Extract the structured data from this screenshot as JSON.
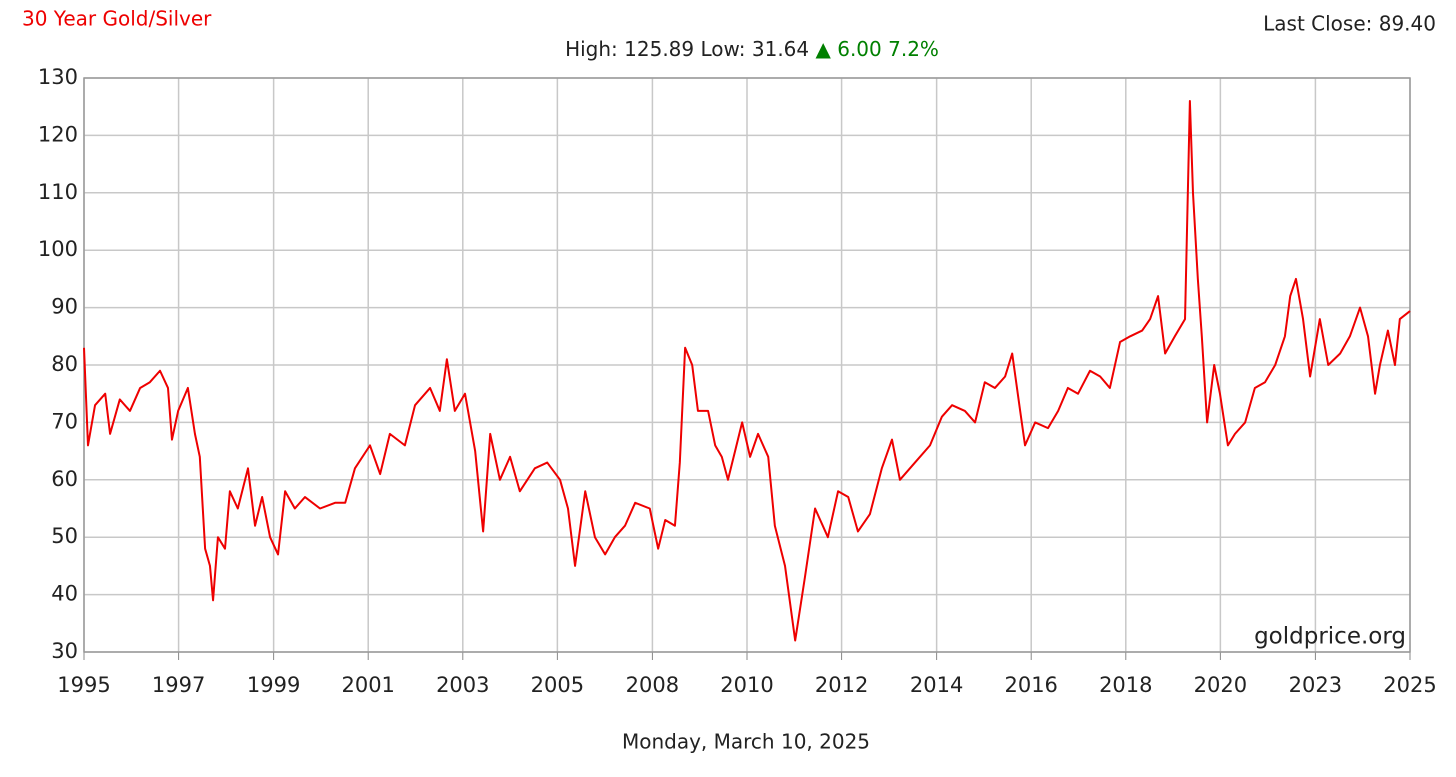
{
  "chart_data": {
    "type": "line",
    "title": "30 Year Gold/Silver",
    "last_close": "Last Close: 89.40",
    "high_low": "High: 125.89 Low: 31.64",
    "change": "▲ 6.00 7.2%",
    "change_color": "#008000",
    "watermark": "goldprice.org",
    "x_label": "Monday, March 10, 2025",
    "color": "#ee0000",
    "grid": true,
    "x": [
      1995.19,
      1995.28,
      1995.44,
      1995.67,
      1995.78,
      1996.0,
      1996.23,
      1996.46,
      1996.68,
      1996.91,
      1997.09,
      1997.18,
      1997.32,
      1997.54,
      1997.7,
      1997.81,
      1997.93,
      1998.04,
      1998.11,
      1998.22,
      1998.38,
      1998.49,
      1998.67,
      1998.9,
      1999.06,
      1999.22,
      1999.4,
      1999.58,
      1999.74,
      1999.96,
      2000.19,
      2000.53,
      2000.87,
      2001.1,
      2001.32,
      2001.66,
      2001.89,
      2002.11,
      2002.45,
      2002.68,
      2003.02,
      2003.24,
      2003.4,
      2003.58,
      2003.81,
      2004.04,
      2004.22,
      2004.38,
      2004.6,
      2004.83,
      2005.05,
      2005.39,
      2005.67,
      2005.96,
      2006.14,
      2006.3,
      2006.53,
      2006.75,
      2006.98,
      2007.2,
      2007.43,
      2007.66,
      2007.99,
      2008.18,
      2008.34,
      2008.56,
      2008.67,
      2008.79,
      2008.95,
      2009.08,
      2009.31,
      2009.47,
      2009.62,
      2009.76,
      2009.92,
      2010.08,
      2010.26,
      2010.44,
      2010.67,
      2010.82,
      2011.05,
      2011.28,
      2011.5,
      2011.73,
      2012.02,
      2012.25,
      2012.48,
      2012.7,
      2012.97,
      2013.24,
      2013.47,
      2013.65,
      2013.99,
      2014.33,
      2014.6,
      2014.83,
      2015.12,
      2015.35,
      2015.57,
      2015.8,
      2016.03,
      2016.19,
      2016.37,
      2016.48,
      2016.71,
      2017.0,
      2017.23,
      2017.45,
      2017.68,
      2017.95,
      2018.18,
      2018.4,
      2018.63,
      2018.86,
      2019.13,
      2019.31,
      2019.49,
      2019.65,
      2019.87,
      2020.1,
      2020.21,
      2020.28,
      2020.39,
      2020.48,
      2020.6,
      2020.76,
      2020.89,
      2021.07,
      2021.23,
      2021.46,
      2021.68,
      2021.91,
      2022.14,
      2022.36,
      2022.48,
      2022.61,
      2022.77,
      2022.93,
      2023.15,
      2023.34,
      2023.61,
      2023.83,
      2024.06,
      2024.24,
      2024.4,
      2024.51,
      2024.69,
      2024.85,
      2024.96,
      2025.19
    ],
    "values": [
      83,
      66,
      73,
      75,
      68,
      74,
      72,
      76,
      77,
      79,
      76,
      67,
      72,
      76,
      68,
      64,
      48,
      45,
      39,
      50,
      48,
      58,
      55,
      62,
      52,
      57,
      50,
      47,
      58,
      55,
      57,
      55,
      56,
      56,
      62,
      66,
      61,
      68,
      66,
      73,
      76,
      72,
      81,
      72,
      75,
      65,
      51,
      68,
      60,
      64,
      58,
      62,
      63,
      60,
      55,
      45,
      58,
      50,
      47,
      50,
      52,
      56,
      55,
      48,
      53,
      52,
      63,
      83,
      80,
      72,
      72,
      66,
      64,
      60,
      65,
      70,
      64,
      68,
      64,
      52,
      45,
      32,
      43,
      55,
      50,
      58,
      57,
      51,
      54,
      62,
      67,
      60,
      63,
      66,
      71,
      73,
      72,
      70,
      77,
      76,
      78,
      82,
      72,
      66,
      70,
      69,
      72,
      76,
      75,
      79,
      78,
      76,
      84,
      85,
      86,
      88,
      92,
      82,
      85,
      88,
      126,
      110,
      95,
      85,
      70,
      80,
      75,
      66,
      68,
      70,
      76,
      77,
      80,
      85,
      92,
      95,
      88,
      78,
      88,
      80,
      82,
      85,
      90,
      85,
      75,
      80,
      86,
      80,
      88,
      89.4
    ],
    "xlim": [
      1995.19,
      2025.19
    ],
    "xticks": [
      {
        "value": 1995.19,
        "label": "1995"
      },
      {
        "value": 1997.33,
        "label": "1997"
      },
      {
        "value": 1999.48,
        "label": "1999"
      },
      {
        "value": 2001.62,
        "label": "2001"
      },
      {
        "value": 2003.76,
        "label": "2003"
      },
      {
        "value": 2005.9,
        "label": "2005"
      },
      {
        "value": 2008.05,
        "label": "2008"
      },
      {
        "value": 2010.19,
        "label": "2010"
      },
      {
        "value": 2012.33,
        "label": "2012"
      },
      {
        "value": 2014.48,
        "label": "2014"
      },
      {
        "value": 2016.62,
        "label": "2016"
      },
      {
        "value": 2018.76,
        "label": "2018"
      },
      {
        "value": 2020.9,
        "label": "2020"
      },
      {
        "value": 2023.05,
        "label": "2023"
      },
      {
        "value": 2025.19,
        "label": "2025"
      }
    ],
    "ylim": [
      30,
      130
    ],
    "yticks": [
      30,
      40,
      50,
      60,
      70,
      80,
      90,
      100,
      110,
      120,
      130
    ]
  }
}
